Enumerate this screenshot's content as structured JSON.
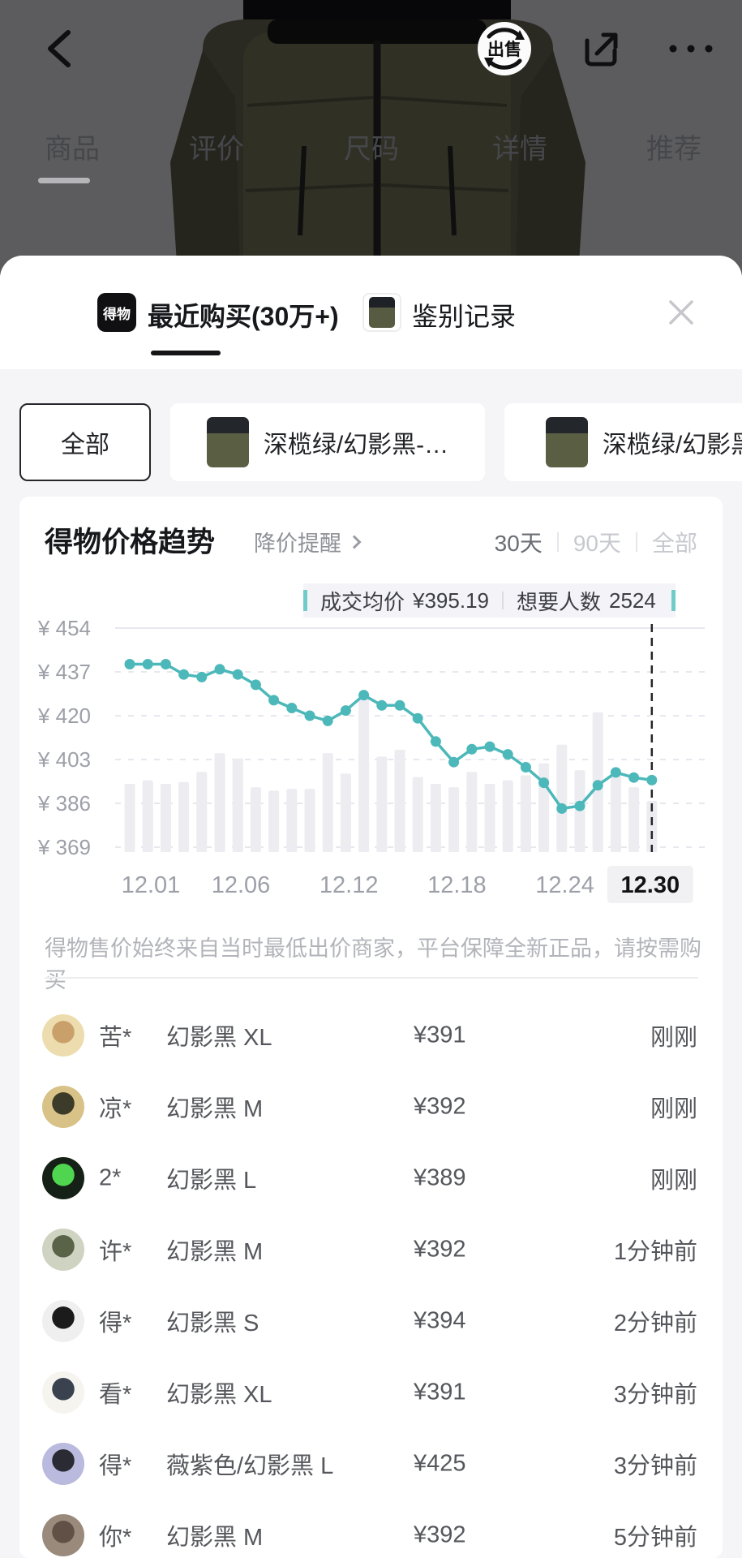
{
  "backdrop": {
    "sell_badge_label": "出售",
    "tabs": [
      {
        "label": "商品",
        "active": true
      },
      {
        "label": "评价",
        "active": false
      },
      {
        "label": "尺码",
        "active": false
      },
      {
        "label": "详情",
        "active": false
      },
      {
        "label": "推荐",
        "active": false
      }
    ]
  },
  "sheet": {
    "logo_text": "得物",
    "tab_recent_label": "最近购买(30万+)",
    "tab_auth_label": "鉴别记录",
    "filters": [
      {
        "label": "全部",
        "selected": true
      },
      {
        "label": "深榄绿/幻影黑-…",
        "selected": false
      },
      {
        "label": "深榄绿/幻影黑",
        "selected": false
      }
    ]
  },
  "price_section": {
    "title": "得物价格趋势",
    "alert_link": "降价提醒",
    "ranges": [
      {
        "label": "30天",
        "active": true
      },
      {
        "label": "90天",
        "active": false
      },
      {
        "label": "全部",
        "active": false
      }
    ],
    "legend": {
      "avg_label": "成交均价",
      "avg_value": "¥395.19",
      "want_label": "想要人数",
      "want_value": "2524"
    },
    "disclaimer": "得物售价始终来自当时最低出价商家，平台保障全新正品，请按需购买"
  },
  "chart_data": {
    "type": "line",
    "title": "得物价格趋势",
    "x": [
      "12.01",
      "12.02",
      "12.03",
      "12.04",
      "12.05",
      "12.06",
      "12.07",
      "12.08",
      "12.09",
      "12.10",
      "12.11",
      "12.12",
      "12.13",
      "12.14",
      "12.15",
      "12.16",
      "12.17",
      "12.18",
      "12.19",
      "12.20",
      "12.21",
      "12.22",
      "12.23",
      "12.24",
      "12.25",
      "12.26",
      "12.27",
      "12.28",
      "12.29",
      "12.30"
    ],
    "series": [
      {
        "name": "成交均价",
        "type": "line",
        "color": "#4cb8ba",
        "values": [
          440,
          440,
          440,
          436,
          435,
          438,
          436,
          432,
          426,
          423,
          420,
          418,
          422,
          428,
          424,
          424,
          419,
          410,
          402,
          407,
          408,
          405,
          400,
          394,
          384,
          385,
          393,
          398,
          396,
          395
        ]
      },
      {
        "name": "想要人数",
        "type": "bar",
        "color": "#ececf1",
        "values": [
          40,
          42,
          40,
          41,
          47,
          58,
          55,
          38,
          36,
          37,
          37,
          58,
          46,
          90,
          56,
          60,
          44,
          40,
          38,
          47,
          40,
          42,
          45,
          52,
          63,
          48,
          82,
          45,
          38,
          30
        ]
      }
    ],
    "y_axis": {
      "labels": [
        "¥ 454",
        "¥ 437",
        "¥ 420",
        "¥ 403",
        "¥ 386",
        "¥ 369"
      ],
      "max": 454,
      "min": 369,
      "step": 17
    },
    "x_ticks": {
      "labels": [
        "12.01",
        "12.06",
        "12.12",
        "12.18",
        "12.24",
        "12.30"
      ],
      "indices": [
        0,
        5,
        11,
        17,
        23,
        29
      ],
      "highlight": "12.30"
    },
    "cursor_index": 29,
    "grid": "dashed-horizontal",
    "legend_position": "top-right"
  },
  "purchases": [
    {
      "name": "苦*",
      "spec": "幻影黑 XL",
      "price": "¥391",
      "time": "刚刚",
      "avatar": [
        "#ecdcae",
        "#c9a06a"
      ]
    },
    {
      "name": "凉*",
      "spec": "幻影黑 M",
      "price": "¥392",
      "time": "刚刚",
      "avatar": [
        "#d8c288",
        "#3c3a28"
      ]
    },
    {
      "name": "2*",
      "spec": "幻影黑 L",
      "price": "¥389",
      "time": "刚刚",
      "avatar": [
        "#152016",
        "#4fd54f"
      ]
    },
    {
      "name": "许*",
      "spec": "幻影黑 M",
      "price": "¥392",
      "time": "1分钟前",
      "avatar": [
        "#cfd3c2",
        "#5a6248"
      ]
    },
    {
      "name": "得*",
      "spec": "幻影黑 S",
      "price": "¥394",
      "time": "2分钟前",
      "avatar": [
        "#efefef",
        "#1b1b1b"
      ]
    },
    {
      "name": "看*",
      "spec": "幻影黑 XL",
      "price": "¥391",
      "time": "3分钟前",
      "avatar": [
        "#f6f4ef",
        "#39424e"
      ]
    },
    {
      "name": "得*",
      "spec": "薇紫色/幻影黑 L",
      "price": "¥425",
      "time": "3分钟前",
      "avatar": [
        "#b9badd",
        "#2b2b34"
      ]
    },
    {
      "name": "你*",
      "spec": "幻影黑 M",
      "price": "¥392",
      "time": "5分钟前",
      "avatar": [
        "#9a8a7c",
        "#605045"
      ]
    }
  ]
}
